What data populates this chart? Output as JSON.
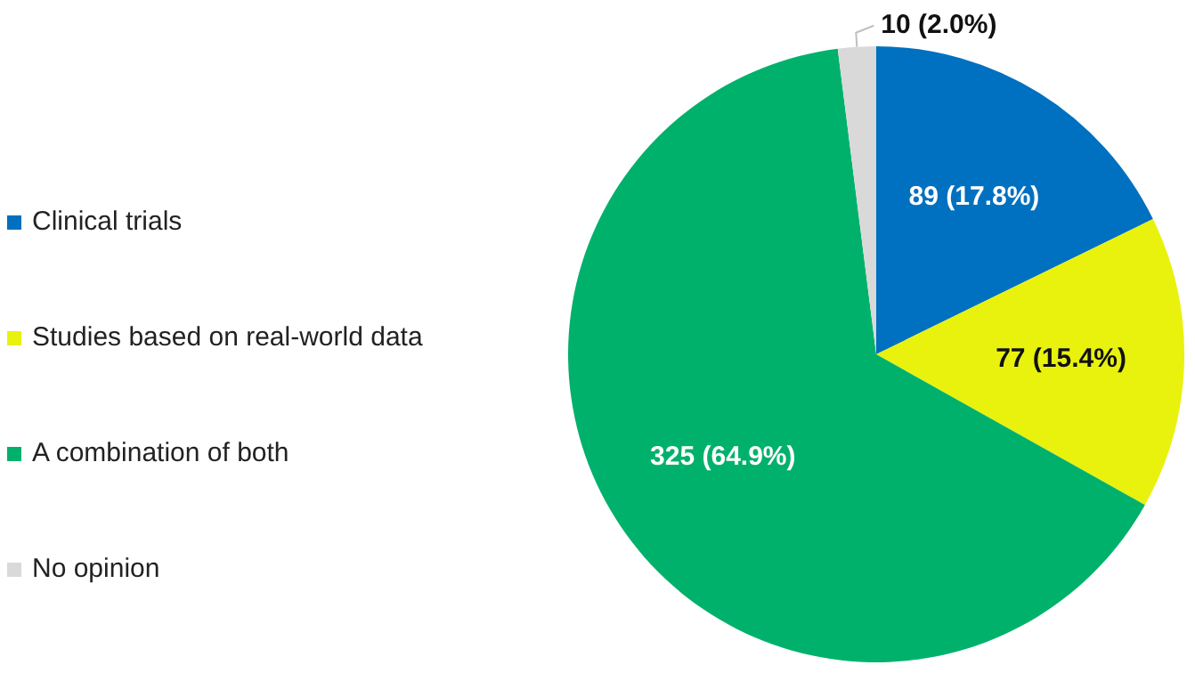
{
  "chart_data": {
    "type": "pie",
    "categories": [
      "Clinical trials",
      "Studies based on real-world data",
      "A combination of both",
      "No opinion"
    ],
    "values": [
      89,
      77,
      325,
      10
    ],
    "colors": [
      "#0070c0",
      "#e8f20c",
      "#00b16c",
      "#d9d9d9"
    ],
    "value_labels": [
      "89 (17.8%)",
      "77 (15.4%)",
      "325 (64.9%)",
      "10 (2.0%)"
    ],
    "legend": "left"
  }
}
